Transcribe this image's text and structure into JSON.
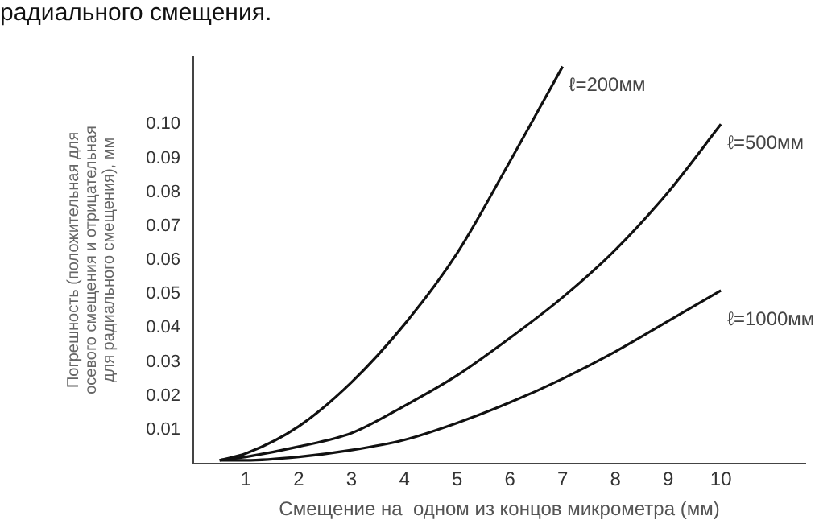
{
  "chart_data": {
    "type": "line",
    "title": "радиального смещения.",
    "xlabel": "Смещение на  одном из концов микрометра (мм)",
    "ylabel": "Погрешность (положительная для\nосевого смещения и отрицательная\nдля радиального смещения), мм",
    "x": [
      0.5,
      1,
      2,
      3,
      4,
      5,
      6,
      7,
      8,
      9,
      10
    ],
    "series": [
      {
        "name": "ℓ=200мм",
        "color": "#111111",
        "x": [
          0.5,
          1,
          2,
          3,
          4,
          5,
          6,
          6.5,
          7
        ],
        "values": [
          0.001,
          0.003,
          0.011,
          0.024,
          0.041,
          0.062,
          0.089,
          0.103,
          0.117
        ]
      },
      {
        "name": "ℓ=500мм",
        "color": "#111111",
        "values": [
          0.001,
          0.002,
          0.005,
          0.009,
          0.017,
          0.026,
          0.037,
          0.049,
          0.063,
          0.08,
          0.1
        ]
      },
      {
        "name": "ℓ=1000мм",
        "color": "#111111",
        "values": [
          0.001,
          0.001,
          0.002,
          0.004,
          0.007,
          0.012,
          0.018,
          0.025,
          0.033,
          0.042,
          0.051
        ]
      }
    ],
    "xlim": [
      0,
      11.6
    ],
    "xticks": [
      1,
      2,
      3,
      4,
      5,
      6,
      7,
      8,
      9,
      10
    ],
    "ylim": [
      0,
      0.12
    ],
    "yticks": [
      0.01,
      0.02,
      0.03,
      0.04,
      0.05,
      0.06,
      0.07,
      0.08,
      0.09,
      {
        "value": 0.1,
        "label": "0.10"
      }
    ],
    "grid": false,
    "legend": false,
    "marker": "none",
    "line_style": "solid"
  }
}
